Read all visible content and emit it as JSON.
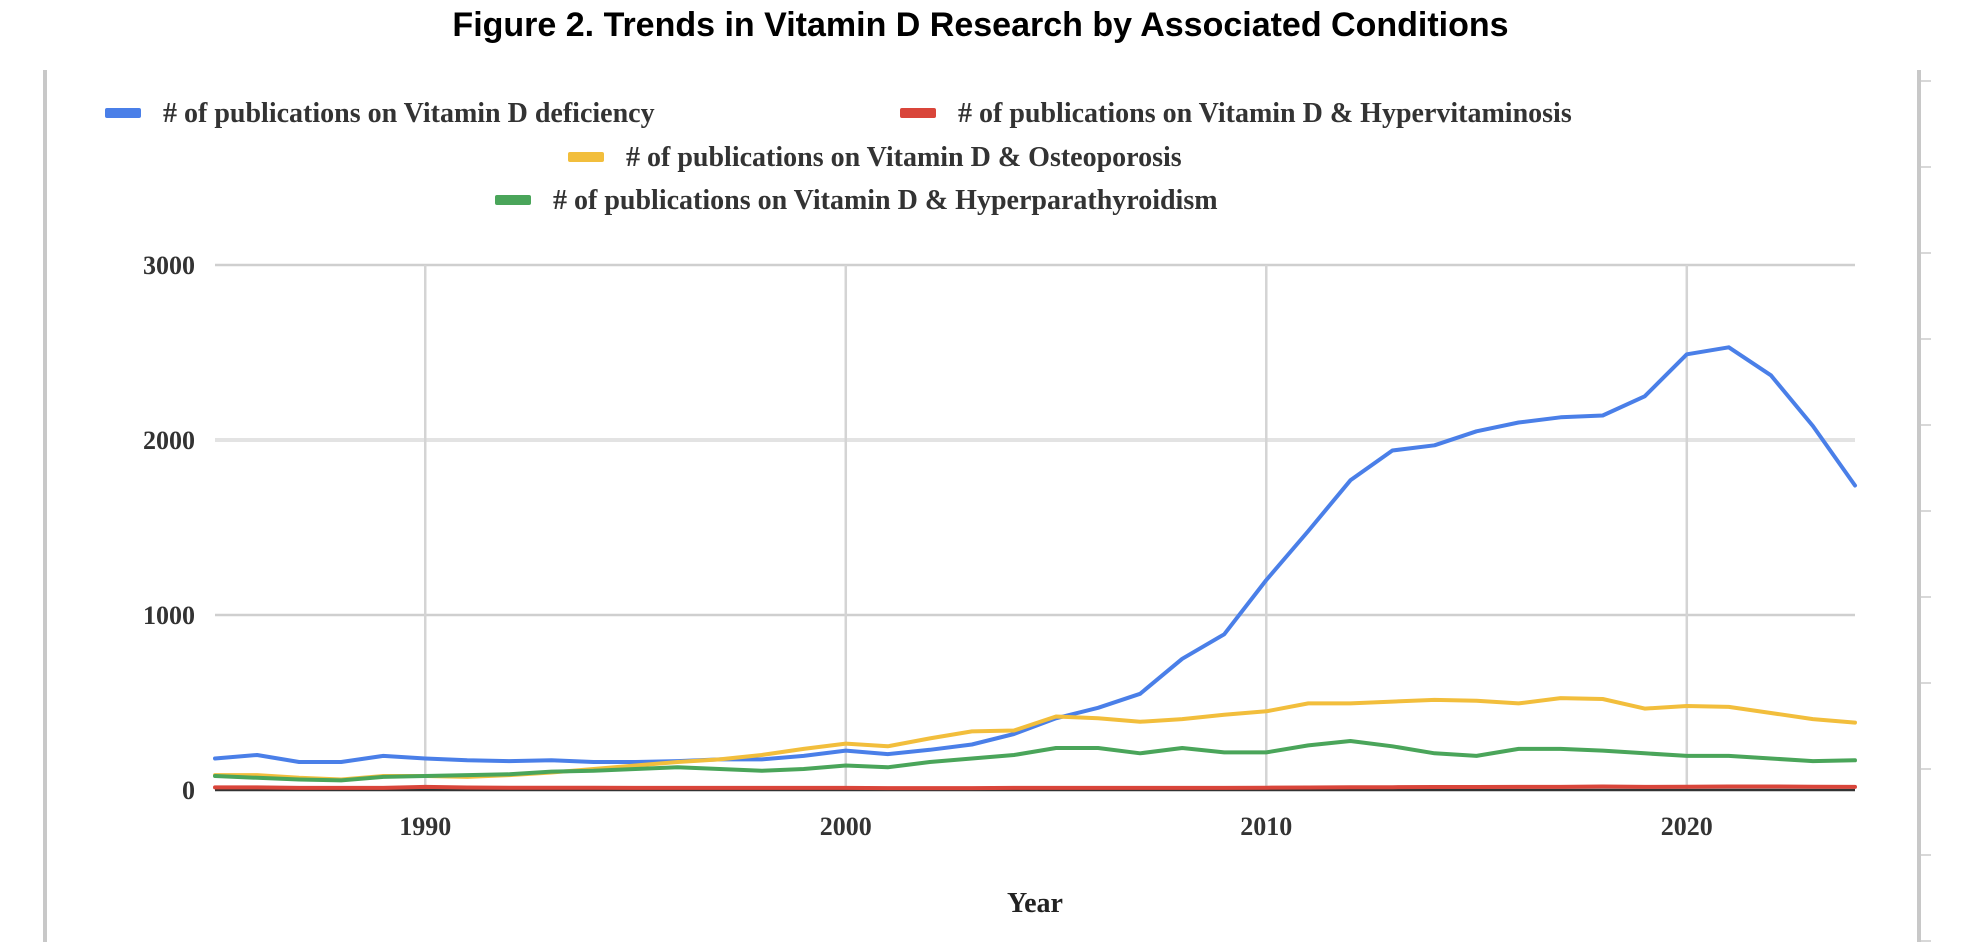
{
  "title": "Figure 2. Trends in Vitamin D Research by Associated Conditions",
  "chart_data": {
    "type": "line",
    "xlabel": "Year",
    "ylabel": "",
    "xlim": [
      1985,
      2024
    ],
    "ylim": [
      0,
      3000
    ],
    "x_ticks": [
      1990,
      2000,
      2010,
      2020
    ],
    "y_ticks": [
      0,
      1000,
      2000,
      3000
    ],
    "grid": true,
    "legend_position": "top",
    "x": [
      1985,
      1986,
      1987,
      1988,
      1989,
      1990,
      1991,
      1992,
      1993,
      1994,
      1995,
      1996,
      1997,
      1998,
      1999,
      2000,
      2001,
      2002,
      2003,
      2004,
      2005,
      2006,
      2007,
      2008,
      2009,
      2010,
      2011,
      2012,
      2013,
      2014,
      2015,
      2016,
      2017,
      2018,
      2019,
      2020,
      2021,
      2022,
      2023,
      2024
    ],
    "series": [
      {
        "name": "# of publications on Vitamin D deficiency",
        "color": "#4a7fe8",
        "values": [
          180,
          200,
          160,
          160,
          195,
          180,
          170,
          165,
          170,
          160,
          160,
          165,
          175,
          175,
          195,
          225,
          205,
          230,
          260,
          320,
          410,
          470,
          550,
          750,
          890,
          1200,
          1480,
          1770,
          1940,
          1970,
          2050,
          2100,
          2130,
          2140,
          2250,
          2490,
          2530,
          2370,
          2080,
          1740
        ]
      },
      {
        "name": "# of publications on Vitamin D & Hypervitaminosis",
        "color": "#d9453a",
        "values": [
          15,
          15,
          12,
          12,
          12,
          18,
          14,
          13,
          13,
          13,
          12,
          12,
          12,
          12,
          12,
          12,
          11,
          11,
          11,
          12,
          12,
          12,
          12,
          12,
          12,
          13,
          14,
          16,
          16,
          17,
          17,
          18,
          18,
          20,
          18,
          19,
          20,
          20,
          19,
          18
        ]
      },
      {
        "name": "# of publications on Vitamin D & Osteoporosis",
        "color": "#f2be3c",
        "values": [
          85,
          85,
          70,
          60,
          80,
          80,
          75,
          85,
          100,
          120,
          140,
          160,
          175,
          200,
          235,
          265,
          250,
          295,
          335,
          340,
          420,
          410,
          390,
          405,
          430,
          450,
          495,
          495,
          505,
          515,
          510,
          495,
          525,
          520,
          465,
          480,
          475,
          440,
          405,
          385
        ]
      },
      {
        "name": "# of publications on Vitamin D & Hyperparathyroidism",
        "color": "#4aa55a",
        "values": [
          80,
          70,
          60,
          55,
          75,
          80,
          85,
          90,
          105,
          110,
          120,
          130,
          120,
          110,
          120,
          140,
          130,
          160,
          180,
          200,
          240,
          240,
          210,
          240,
          215,
          215,
          255,
          280,
          250,
          210,
          195,
          235,
          235,
          225,
          210,
          195,
          195,
          180,
          165,
          170
        ]
      }
    ]
  }
}
